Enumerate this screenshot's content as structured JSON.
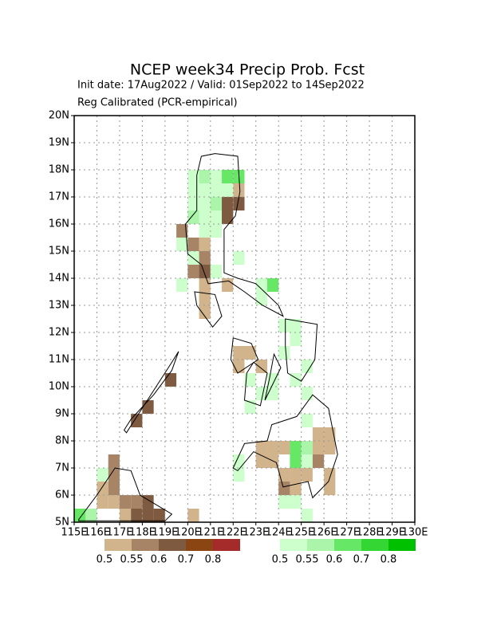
{
  "header": {
    "title": "NCEP week34 Precip Prob. Fcst",
    "subtitle": "Init date: 17Aug2022 / Valid: 01Sep2022 to 14Sep2022",
    "method": "Reg Calibrated (PCR-empirical)"
  },
  "axes": {
    "x_labels": [
      "115E",
      "116E",
      "117E",
      "118E",
      "119E",
      "120E",
      "121E",
      "122E",
      "123E",
      "124E",
      "125E",
      "126E",
      "127E",
      "128E",
      "129E",
      "130E"
    ],
    "y_labels": [
      "5N",
      "6N",
      "7N",
      "8N",
      "9N",
      "10N",
      "11N",
      "12N",
      "13N",
      "14N",
      "15N",
      "16N",
      "17N",
      "18N",
      "19N",
      "20N"
    ]
  },
  "legend": {
    "below": {
      "labels": [
        "0.5",
        "0.55",
        "0.6",
        "0.7",
        "0.8"
      ],
      "colors": [
        "#d2b48c",
        "#a88466",
        "#7d5a40",
        "#8b4513",
        "#a52a2a"
      ]
    },
    "above": {
      "labels": [
        "0.5",
        "0.55",
        "0.6",
        "0.7",
        "0.8"
      ],
      "colors": [
        "#ccffcc",
        "#aaf5aa",
        "#66e866",
        "#33d633",
        "#00c000"
      ]
    }
  }
}
